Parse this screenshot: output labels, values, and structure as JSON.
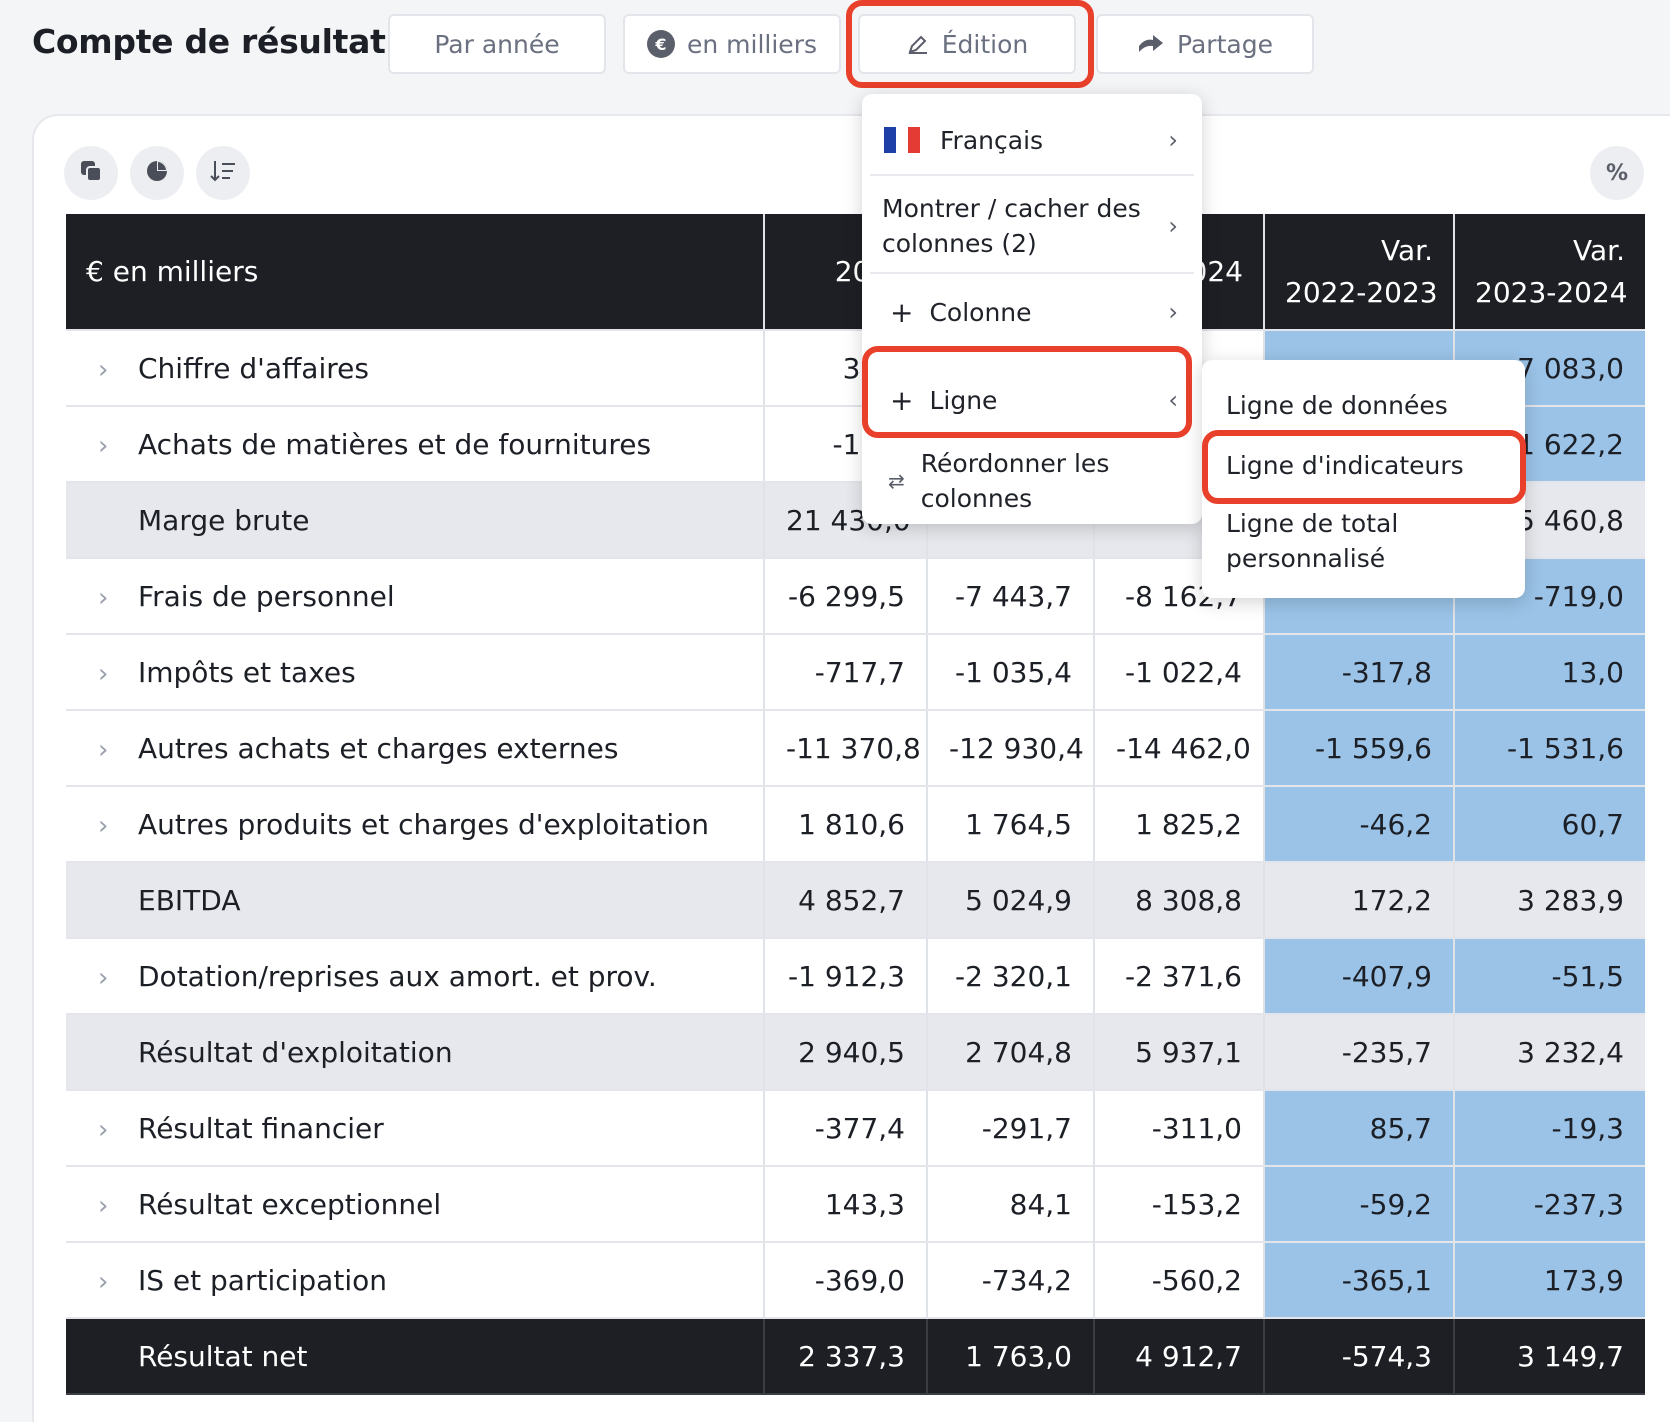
{
  "page": {
    "title": "Compte de résultat"
  },
  "toolbar": {
    "period": "Par année",
    "unit": "en milliers",
    "edit": "Édition",
    "share": "Partage",
    "percent": "%"
  },
  "table": {
    "header": {
      "label": "€ en milliers",
      "col_2022": "2022",
      "col_2024": "2024",
      "var1_line1": "Var.",
      "var1_line2": "2022-2023",
      "var2_line1": "Var.",
      "var2_line2": "2023-2024"
    },
    "rows": [
      {
        "label": "Chiffre d'affaires",
        "v2022": "38 6",
        "v2023": "",
        "v2024": "",
        "var1": "",
        "var2": "7 083,0"
      },
      {
        "label": "Achats de matières et de fournitures",
        "v2022": "-17 1",
        "v2023": "",
        "v2024": "",
        "var1": "",
        "var2": "-1 622,2"
      },
      {
        "label": "Marge brute",
        "v2022": "21 430,0",
        "v2023": "",
        "v2024": "",
        "var1": "",
        "var2": "5 460,8"
      },
      {
        "label": "Frais de personnel",
        "v2022": "-6 299,5",
        "v2023": "-7 443,7",
        "v2024": "-8 162,7",
        "var1": "",
        "var2": "-719,0"
      },
      {
        "label": "Impôts et taxes",
        "v2022": "-717,7",
        "v2023": "-1 035,4",
        "v2024": "-1 022,4",
        "var1": "-317,8",
        "var2": "13,0"
      },
      {
        "label": "Autres achats et charges externes",
        "v2022": "-11 370,8",
        "v2023": "-12 930,4",
        "v2024": "-14 462,0",
        "var1": "-1 559,6",
        "var2": "-1 531,6"
      },
      {
        "label": "Autres produits et charges d'exploitation",
        "v2022": "1 810,6",
        "v2023": "1 764,5",
        "v2024": "1 825,2",
        "var1": "-46,2",
        "var2": "60,7"
      },
      {
        "label": "EBITDA",
        "v2022": "4 852,7",
        "v2023": "5 024,9",
        "v2024": "8 308,8",
        "var1": "172,2",
        "var2": "3 283,9"
      },
      {
        "label": "Dotation/reprises aux amort. et prov.",
        "v2022": "-1 912,3",
        "v2023": "-2 320,1",
        "v2024": "-2 371,6",
        "var1": "-407,9",
        "var2": "-51,5"
      },
      {
        "label": "Résultat d'exploitation",
        "v2022": "2 940,5",
        "v2023": "2 704,8",
        "v2024": "5 937,1",
        "var1": "-235,7",
        "var2": "3 232,4"
      },
      {
        "label": "Résultat financier",
        "v2022": "-377,4",
        "v2023": "-291,7",
        "v2024": "-311,0",
        "var1": "85,7",
        "var2": "-19,3"
      },
      {
        "label": "Résultat exceptionnel",
        "v2022": "143,3",
        "v2023": "84,1",
        "v2024": "-153,2",
        "var1": "-59,2",
        "var2": "-237,3"
      },
      {
        "label": "IS et participation",
        "v2022": "-369,0",
        "v2023": "-734,2",
        "v2024": "-560,2",
        "var1": "-365,1",
        "var2": "173,9"
      },
      {
        "label": "Résultat net",
        "v2022": "2 337,3",
        "v2023": "1 763,0",
        "v2024": "4 912,7",
        "var1": "-574,3",
        "var2": "3 149,7"
      }
    ]
  },
  "menu": {
    "language": "Français",
    "show_hide": "Montrer / cacher des colonnes (2)",
    "column": "Colonne",
    "line": "Ligne",
    "reorder": "Réordonner les colonnes"
  },
  "submenu": {
    "data_line": "Ligne de données",
    "indicator_line": "Ligne d'indicateurs",
    "custom_total_line": "Ligne de total personnalisé"
  },
  "colors": {
    "header_bg": "#1d1f24",
    "variance_bg": "#9ac3e7",
    "subtotal_bg": "#e6e8ed",
    "highlight": "#e8402a"
  }
}
